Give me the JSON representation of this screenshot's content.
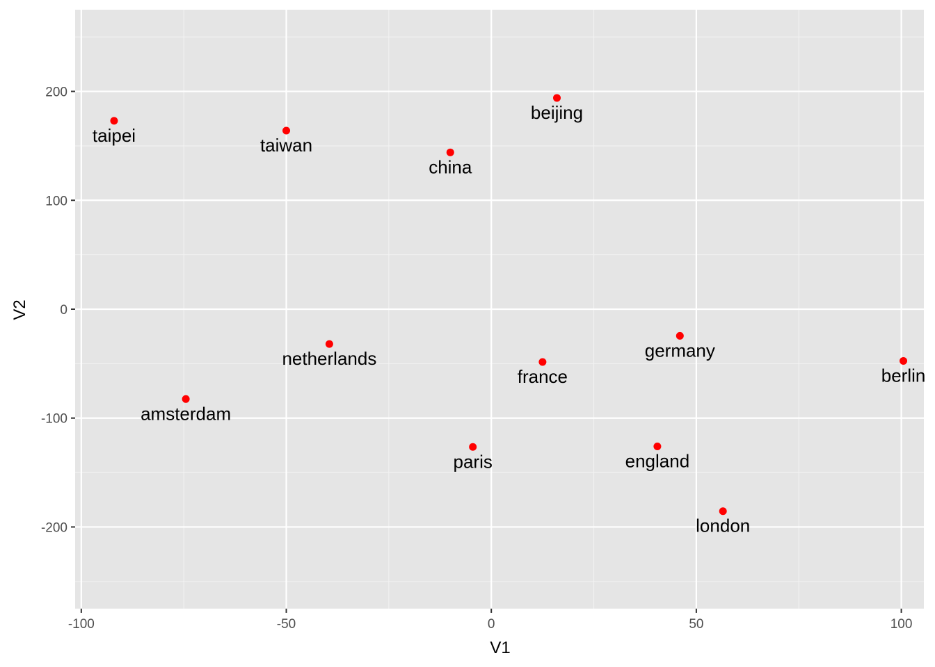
{
  "chart_data": {
    "type": "scatter",
    "title": "",
    "xlabel": "V1",
    "ylabel": "V2",
    "xlim": [
      -101.5,
      105.5
    ],
    "ylim": [
      -275,
      275
    ],
    "x_ticks": [
      -100,
      -50,
      0,
      50,
      100
    ],
    "x_tick_labels": [
      "-100",
      "-50",
      "0",
      "50",
      "100"
    ],
    "y_ticks": [
      -200,
      -100,
      0,
      100,
      200
    ],
    "y_tick_labels": [
      "-200",
      "-100",
      "0",
      "100",
      "200"
    ],
    "grid": true,
    "panel_background": "#e5e5e5",
    "point_color": "#ff0000",
    "points": [
      {
        "label": "taipei",
        "x": -92,
        "y": 173
      },
      {
        "label": "taiwan",
        "x": -50,
        "y": 164
      },
      {
        "label": "china",
        "x": -10,
        "y": 144
      },
      {
        "label": "beijing",
        "x": 16,
        "y": 194
      },
      {
        "label": "netherlands",
        "x": -39.5,
        "y": -32
      },
      {
        "label": "amsterdam",
        "x": -74.5,
        "y": -82.5
      },
      {
        "label": "france",
        "x": 12.5,
        "y": -48.5
      },
      {
        "label": "germany",
        "x": 46,
        "y": -24.5
      },
      {
        "label": "berlin",
        "x": 100.5,
        "y": -47.5
      },
      {
        "label": "paris",
        "x": -4.5,
        "y": -126.5
      },
      {
        "label": "england",
        "x": 40.5,
        "y": -126
      },
      {
        "label": "london",
        "x": 56.5,
        "y": -185.5
      }
    ]
  }
}
